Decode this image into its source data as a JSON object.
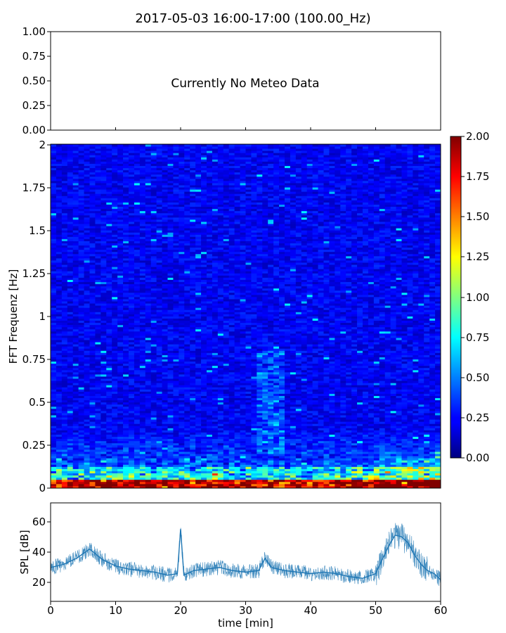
{
  "figure_title": "2017-05-03 16:00-17:00 (100.00_Hz)",
  "chart_data": [
    {
      "type": "table",
      "panel": "meteo",
      "annotation": "Currently No Meteo Data",
      "ylim": [
        0.0,
        1.0
      ],
      "yticks": [
        "0.00",
        "0.25",
        "0.50",
        "0.75",
        "1.00"
      ],
      "xlim": [
        0,
        60
      ]
    },
    {
      "type": "heatmap",
      "panel": "spectrogram",
      "ylabel": "FFT Frequenz [Hz]",
      "ylim": [
        0,
        2
      ],
      "yticks": [
        "0",
        "0.25",
        "0.5",
        "0.75",
        "1",
        "1.25",
        "1.5",
        "1.75",
        "2"
      ],
      "xlim": [
        0,
        60
      ],
      "colormap": "jet",
      "colorbar": {
        "range": [
          0.0,
          2.0
        ],
        "ticks": [
          "0.00",
          "0.25",
          "0.50",
          "0.75",
          "1.00",
          "1.25",
          "1.50",
          "1.75",
          "2.00"
        ]
      },
      "features": [
        {
          "x_range": [
            0,
            60
          ],
          "y_range": [
            0,
            0.05
          ],
          "value": "1.5-2.0"
        },
        {
          "x_range": [
            32,
            36
          ],
          "y_range": [
            0.2,
            0.8
          ],
          "value": "0.6-0.9"
        },
        {
          "x_range": [
            50,
            60
          ],
          "y_range": [
            0,
            0.25
          ],
          "value": "0.8-2.0"
        }
      ]
    },
    {
      "type": "line",
      "panel": "spl",
      "xlabel": "time [min]",
      "ylabel": "SPL [dB]",
      "xlim": [
        0,
        60
      ],
      "ylim": [
        8,
        72
      ],
      "xticks": [
        "0",
        "10",
        "20",
        "30",
        "40",
        "50",
        "60"
      ],
      "yticks": [
        "20",
        "40",
        "60"
      ],
      "color": "#1f77b4",
      "x": [
        0,
        2,
        4,
        6,
        8,
        10,
        12,
        14,
        16,
        18,
        19.5,
        20,
        20.5,
        22,
        24,
        26,
        28,
        30,
        32,
        33,
        34,
        36,
        38,
        40,
        42,
        44,
        46,
        48,
        50,
        51,
        52,
        53,
        54,
        55,
        56,
        57,
        58,
        59,
        60
      ],
      "y": [
        30,
        32,
        36,
        42,
        35,
        31,
        29,
        28,
        27,
        25,
        26,
        55,
        25,
        28,
        29,
        30,
        28,
        27,
        28,
        36,
        30,
        28,
        27,
        26,
        27,
        26,
        24,
        23,
        26,
        35,
        44,
        51,
        50,
        46,
        38,
        32,
        28,
        26,
        22
      ]
    }
  ]
}
